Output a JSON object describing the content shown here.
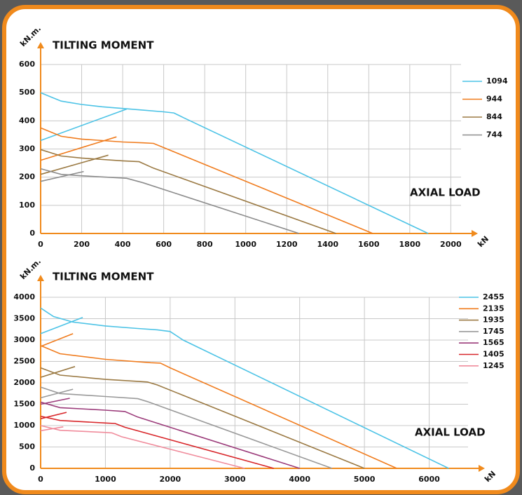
{
  "chart_data": [
    {
      "type": "line",
      "title": "TILTING MOMENT",
      "y_label": "kN.m.",
      "x_label": "kN",
      "annotation": "AXIAL LOAD",
      "xlim": [
        0,
        2050
      ],
      "xticks": [
        0,
        200,
        400,
        600,
        800,
        1000,
        1200,
        1400,
        1600,
        1800,
        2000
      ],
      "ylim": [
        0,
        600
      ],
      "yticks": [
        0,
        100,
        200,
        300,
        400,
        500,
        600
      ],
      "grid": true,
      "legend": "right",
      "series": [
        {
          "name": "1094",
          "color": "#4cc3e6",
          "x": [
            0,
            50,
            100,
            200,
            300,
            400,
            500,
            600,
            650,
            700,
            1890,
            null,
            0,
            420
          ],
          "values": [
            500,
            485,
            470,
            458,
            450,
            444,
            438,
            432,
            428,
            410,
            0,
            null,
            330,
            442
          ]
        },
        {
          "name": "944",
          "color": "#f07c1e",
          "x": [
            0,
            100,
            200,
            400,
            500,
            550,
            600,
            1620,
            null,
            0,
            370
          ],
          "values": [
            375,
            345,
            335,
            325,
            322,
            320,
            305,
            0,
            null,
            260,
            343
          ]
        },
        {
          "name": "844",
          "color": "#9b7a44",
          "x": [
            0,
            100,
            200,
            400,
            480,
            550,
            1440,
            null,
            0,
            330
          ],
          "values": [
            298,
            275,
            268,
            258,
            255,
            232,
            0,
            null,
            210,
            278
          ]
        },
        {
          "name": "744",
          "color": "#8c8c8c",
          "x": [
            0,
            100,
            200,
            400,
            420,
            500,
            1260,
            null,
            0,
            210
          ],
          "values": [
            230,
            210,
            205,
            197,
            196,
            180,
            0,
            null,
            185,
            220
          ]
        }
      ]
    },
    {
      "type": "line",
      "title": "TILTING MOMENT",
      "y_label": "kN.m.",
      "x_label": "kN",
      "annotation": "AXIAL LOAD",
      "xlim": [
        0,
        6600
      ],
      "xticks": [
        0,
        1000,
        2000,
        3000,
        4000,
        5000,
        6000
      ],
      "ylim": [
        0,
        4000
      ],
      "yticks": [
        0,
        500,
        1000,
        1500,
        2000,
        2500,
        3000,
        3500,
        4000
      ],
      "grid": true,
      "legend": "right",
      "series": [
        {
          "name": "2455",
          "color": "#4cc3e6",
          "x": [
            0,
            200,
            500,
            1000,
            1500,
            1800,
            2000,
            2200,
            6300,
            null,
            0,
            650
          ],
          "values": [
            3750,
            3550,
            3420,
            3330,
            3270,
            3240,
            3200,
            3000,
            0,
            null,
            3150,
            3530
          ]
        },
        {
          "name": "2135",
          "color": "#f07c1e",
          "x": [
            0,
            300,
            1000,
            1700,
            1850,
            2000,
            5500,
            null,
            0,
            500
          ],
          "values": [
            2870,
            2680,
            2550,
            2470,
            2460,
            2350,
            0,
            null,
            2850,
            3150
          ]
        },
        {
          "name": "1935",
          "color": "#9b7a44",
          "x": [
            0,
            300,
            1000,
            1650,
            1800,
            5000,
            null,
            0,
            530
          ],
          "values": [
            2350,
            2180,
            2080,
            2020,
            1950,
            0,
            null,
            2130,
            2380
          ]
        },
        {
          "name": "1745",
          "color": "#9a9a9a",
          "x": [
            0,
            300,
            1000,
            1500,
            1650,
            4500,
            null,
            0,
            500
          ],
          "values": [
            1900,
            1750,
            1680,
            1630,
            1560,
            0,
            null,
            1650,
            1850
          ]
        },
        {
          "name": "1565",
          "color": "#9b3b7a",
          "x": [
            0,
            300,
            1000,
            1300,
            1500,
            4000,
            null,
            0,
            450
          ],
          "values": [
            1550,
            1420,
            1360,
            1330,
            1200,
            0,
            null,
            1500,
            1640
          ]
        },
        {
          "name": "1405",
          "color": "#d8262a",
          "x": [
            0,
            300,
            1000,
            1150,
            1300,
            3600,
            null,
            0,
            400
          ],
          "values": [
            1220,
            1120,
            1060,
            1050,
            960,
            0,
            null,
            1160,
            1310
          ]
        },
        {
          "name": "1245",
          "color": "#f08c9c",
          "x": [
            0,
            300,
            1000,
            1100,
            1250,
            3150,
            null,
            0,
            350
          ],
          "values": [
            1000,
            890,
            840,
            830,
            740,
            0,
            null,
            880,
            970
          ]
        }
      ]
    }
  ]
}
